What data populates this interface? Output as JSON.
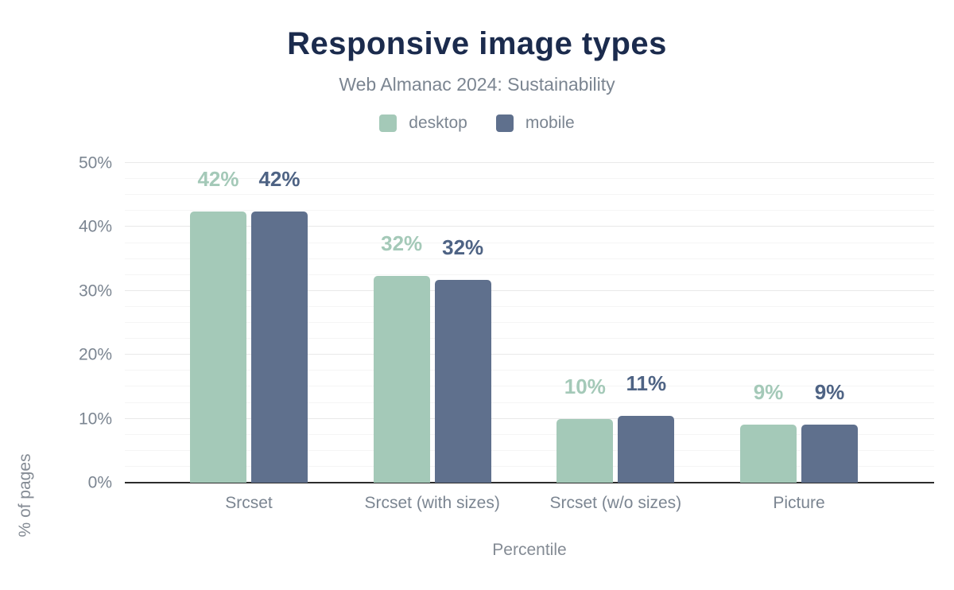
{
  "title": "Responsive image types",
  "subtitle": "Web Almanac 2024: Sustainability",
  "colors": {
    "title": "#1b2b4d",
    "subtitle_gray": "#7b8591",
    "axis_gray": "#848b94",
    "baseline": "#2c2c2c",
    "gridline_major": "#e9e9e9",
    "gridline_minor": "#f5f5f5",
    "desktop": "#a4c9b8",
    "mobile": "#5f708d",
    "mobile_label": "#4e6384"
  },
  "chart_data": {
    "type": "bar",
    "categories": [
      "Srcset",
      "Srcset (with sizes)",
      "Srcset (w/o sizes)",
      "Picture"
    ],
    "series": [
      {
        "name": "desktop",
        "color": "#a4c9b8",
        "label_color": "#a4c9b8",
        "values": [
          42,
          32,
          10,
          9
        ],
        "values_precise": [
          42.4,
          32.3,
          9.9,
          9.1
        ],
        "labels": [
          "42%",
          "32%",
          "10%",
          "9%"
        ]
      },
      {
        "name": "mobile",
        "color": "#5f708d",
        "label_color": "#4e6384",
        "values": [
          42,
          32,
          11,
          9
        ],
        "values_precise": [
          42.4,
          31.7,
          10.5,
          9.1
        ],
        "labels": [
          "42%",
          "32%",
          "11%",
          "9%"
        ]
      }
    ],
    "xlabel": "Percentile",
    "ylabel": "% of pages",
    "ylim": [
      0,
      50
    ],
    "yticks": [
      "0%",
      "10%",
      "20%",
      "30%",
      "40%",
      "50%"
    ],
    "ytick_step": 10,
    "minor_grid_step": 2.5,
    "grid": "on",
    "legend_position": "top",
    "data_labels": "above bars"
  }
}
